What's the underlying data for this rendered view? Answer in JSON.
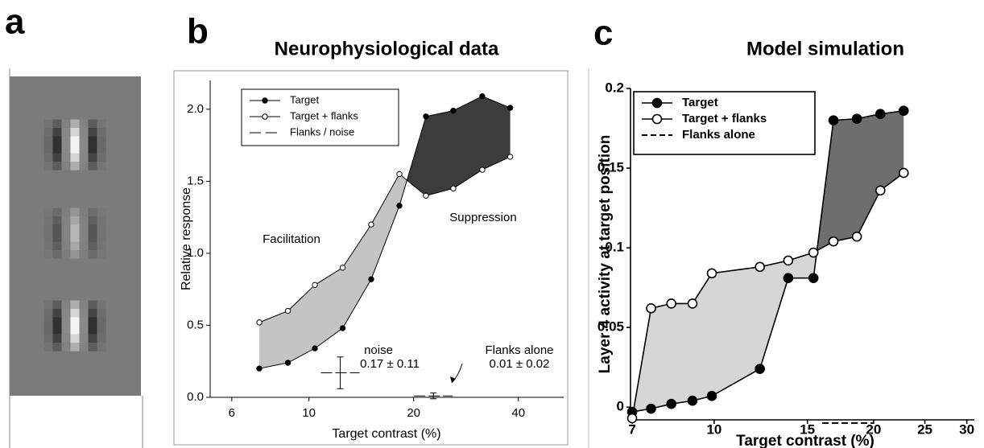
{
  "panel_labels": [
    "a",
    "b",
    "c"
  ],
  "chart_data": [
    {
      "type": "line",
      "title": "Neurophysiological data",
      "x_label": "Target contrast (%)",
      "y_label": "Relative response",
      "x_scale": "log",
      "xlim": [
        5.2,
        54
      ],
      "xticks": [
        6,
        10,
        20,
        40
      ],
      "ylim": [
        0,
        2.2
      ],
      "yticks": [
        {
          "value": 0,
          "label": "0.0"
        },
        0.5,
        {
          "value": 1,
          "label": "1.0"
        },
        1.5,
        {
          "value": 2,
          "label": "2.0"
        }
      ],
      "legend": "upper left",
      "x": [
        7.2,
        8.7,
        10.4,
        12.5,
        15.1,
        18.2,
        21.7,
        26.0,
        31.5,
        37.9
      ],
      "series": [
        {
          "name": "Target",
          "color": "#000000",
          "marker": "filled",
          "values": [
            0.2,
            0.24,
            0.34,
            0.48,
            0.82,
            1.33,
            1.95,
            1.99,
            2.09,
            2.01
          ]
        },
        {
          "name": "Target  + flanks",
          "color": "#000000",
          "marker": "open",
          "values": [
            0.52,
            0.6,
            0.78,
            0.9,
            1.2,
            1.55,
            1.4,
            1.45,
            1.58,
            1.67
          ]
        }
      ],
      "regions": [
        {
          "label": "Facilitation",
          "color": "#c4c4c4"
        },
        {
          "label": "Suppression",
          "color": "#3c3c3c"
        }
      ],
      "error_bars": {
        "name": "Flanks / noise",
        "items": [
          {
            "label": "noise",
            "value_label": "0.17 ± 0.11",
            "x": 12.3,
            "value": 0.17,
            "error": 0.11
          },
          {
            "label": "Flanks alone",
            "value_label": "0.01 ± 0.02",
            "x": 22.8,
            "value": 0.01,
            "error": 0.02
          }
        ]
      }
    },
    {
      "type": "line",
      "title": "Model simulation",
      "x_label": "Target contrast (%)",
      "y_label": "Layer 4 activity at target position",
      "x_scale": "log",
      "xlim": [
        6.95,
        31
      ],
      "xticks": [
        7,
        10,
        15,
        20,
        25,
        30
      ],
      "ylim": [
        -0.008,
        0.2
      ],
      "yticks": [
        0,
        0.05,
        0.1,
        0.15,
        0.2
      ],
      "legend": "upper left",
      "x": [
        7,
        7.6,
        8.3,
        9.1,
        9.9,
        12.2,
        13.8,
        15.4,
        16.8,
        18.6,
        20.6,
        22.8
      ],
      "series": [
        {
          "name": "Target",
          "color": "#000000",
          "marker": "filled",
          "values": [
            -0.003,
            -0.001,
            0.002,
            0.004,
            0.007,
            0.024,
            0.081,
            0.081,
            0.18,
            0.181,
            0.184,
            0.186
          ]
        },
        {
          "name": "Target + flanks",
          "color": "#000000",
          "marker": "open",
          "values": [
            -0.007,
            0.062,
            0.065,
            0.065,
            0.084,
            0.088,
            0.092,
            0.097,
            0.104,
            0.107,
            0.136,
            0.147
          ]
        },
        {
          "name": "Flanks alone",
          "color": "#000000",
          "marker": "none",
          "dash": true,
          "x": [
            16,
            20
          ],
          "values": [
            -0.01,
            -0.01
          ]
        }
      ],
      "regions": [
        {
          "color": "#d6d6d6"
        },
        {
          "color": "#6e6e6e"
        }
      ]
    }
  ]
}
